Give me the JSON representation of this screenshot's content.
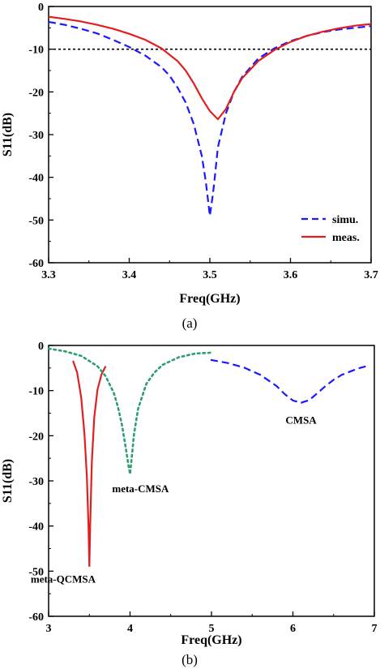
{
  "chart_data": [
    {
      "type": "line",
      "panel_label": "(a)",
      "xlabel": "Freq(GHz)",
      "ylabel": "S11(dB)",
      "xlim": [
        3.3,
        3.7
      ],
      "ylim": [
        -60,
        0
      ],
      "xticks": [
        3.3,
        3.4,
        3.5,
        3.6,
        3.7
      ],
      "yticks": [
        0,
        -10,
        -20,
        -30,
        -40,
        -50,
        -60
      ],
      "grid": false,
      "legend_position": "bottom-right",
      "reference_line": {
        "y": -10,
        "style": "dotted",
        "color": "#000000"
      },
      "series": [
        {
          "name": "simu.",
          "color": "#1a1aff",
          "style": "dashed",
          "x": [
            3.3,
            3.32,
            3.34,
            3.36,
            3.38,
            3.4,
            3.42,
            3.44,
            3.45,
            3.46,
            3.47,
            3.48,
            3.49,
            3.495,
            3.5,
            3.503,
            3.505,
            3.51,
            3.52,
            3.53,
            3.54,
            3.56,
            3.58,
            3.6,
            3.62,
            3.64,
            3.66,
            3.68,
            3.7
          ],
          "y": [
            -3.6,
            -4.3,
            -5.2,
            -6.3,
            -7.8,
            -9.5,
            -11.5,
            -14.2,
            -16.2,
            -19.0,
            -22.5,
            -27.5,
            -35.0,
            -41.0,
            -49.0,
            -45.0,
            -42.0,
            -33.0,
            -25.0,
            -20.0,
            -16.5,
            -12.2,
            -9.8,
            -8.1,
            -6.9,
            -6.0,
            -5.4,
            -5.0,
            -4.6
          ]
        },
        {
          "name": "meas.",
          "color": "#e02020",
          "style": "solid",
          "x": [
            3.3,
            3.32,
            3.34,
            3.36,
            3.38,
            3.4,
            3.42,
            3.44,
            3.46,
            3.47,
            3.48,
            3.49,
            3.5,
            3.51,
            3.52,
            3.53,
            3.54,
            3.56,
            3.58,
            3.6,
            3.62,
            3.64,
            3.66,
            3.68,
            3.7
          ],
          "y": [
            -2.4,
            -2.9,
            -3.5,
            -4.3,
            -5.2,
            -6.4,
            -7.8,
            -9.8,
            -12.8,
            -15.0,
            -18.0,
            -21.5,
            -24.5,
            -26.4,
            -24.0,
            -20.0,
            -16.8,
            -12.8,
            -10.2,
            -8.3,
            -6.9,
            -5.9,
            -5.1,
            -4.5,
            -4.1
          ]
        }
      ]
    },
    {
      "type": "line",
      "panel_label": "(b)",
      "xlabel": "Freq(GHz)",
      "ylabel": "S11(dB)",
      "xlim": [
        3,
        7
      ],
      "ylim": [
        -60,
        0
      ],
      "xticks": [
        3,
        4,
        5,
        6,
        7
      ],
      "yticks": [
        0,
        -10,
        -20,
        -30,
        -40,
        -50,
        -60
      ],
      "grid": false,
      "series": [
        {
          "name": "meta-QCMSA",
          "color": "#e02020",
          "style": "solid",
          "x": [
            3.3,
            3.35,
            3.4,
            3.44,
            3.47,
            3.49,
            3.5,
            3.51,
            3.53,
            3.56,
            3.6,
            3.65,
            3.7
          ],
          "y": [
            -3.4,
            -6.0,
            -11.5,
            -19.5,
            -29.0,
            -40.0,
            -49.0,
            -40.0,
            -26.0,
            -16.0,
            -9.8,
            -6.4,
            -4.6
          ]
        },
        {
          "name": "meta-CMSA",
          "color": "#2e9e6e",
          "style": "dotted",
          "x": [
            3.0,
            3.2,
            3.4,
            3.6,
            3.7,
            3.8,
            3.85,
            3.9,
            3.95,
            3.98,
            4.0,
            4.02,
            4.05,
            4.1,
            4.2,
            4.3,
            4.4,
            4.6,
            4.8,
            5.0
          ],
          "y": [
            -0.7,
            -1.3,
            -2.3,
            -4.6,
            -6.8,
            -10.5,
            -13.5,
            -17.5,
            -23.0,
            -26.5,
            -28.5,
            -25.0,
            -19.5,
            -14.0,
            -8.5,
            -6.0,
            -4.3,
            -2.6,
            -1.8,
            -1.6
          ]
        },
        {
          "name": "CMSA",
          "color": "#1a1aff",
          "style": "dashed",
          "x": [
            4.99,
            5.2,
            5.4,
            5.6,
            5.8,
            5.9,
            6.0,
            6.1,
            6.2,
            6.3,
            6.4,
            6.5,
            6.6,
            6.8,
            6.92
          ],
          "y": [
            -3.2,
            -3.9,
            -4.9,
            -6.5,
            -9.0,
            -10.8,
            -12.2,
            -12.7,
            -12.1,
            -10.6,
            -9.0,
            -7.6,
            -6.5,
            -5.1,
            -4.5
          ]
        }
      ]
    }
  ]
}
